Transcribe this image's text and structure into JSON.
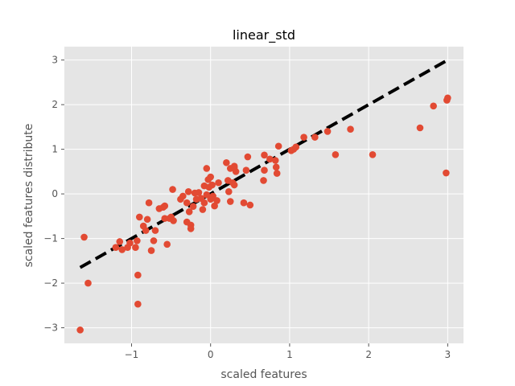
{
  "chart_data": {
    "type": "scatter",
    "title": "linear_std",
    "xlabel": "scaled features",
    "ylabel": "scaled features distribute",
    "xlim": [
      -1.85,
      3.2
    ],
    "ylim": [
      -3.35,
      3.3
    ],
    "xticks": [
      -1,
      0,
      1,
      2,
      3
    ],
    "yticks": [
      -3,
      -2,
      -1,
      0,
      1,
      2,
      3
    ],
    "tick_labels_x": [
      "−1",
      "0",
      "1",
      "2",
      "3"
    ],
    "tick_labels_y": [
      "−3",
      "−2",
      "−1",
      "0",
      "1",
      "2",
      "3"
    ],
    "grid": true,
    "background": "#e5e5e5",
    "point_color": "#e24a33",
    "line_color": "#000000",
    "reference_line": {
      "style": "dashed",
      "x": [
        -1.65,
        3.0
      ],
      "y": [
        -1.65,
        3.0
      ]
    },
    "points": [
      [
        -1.65,
        -3.05
      ],
      [
        -1.6,
        -0.97
      ],
      [
        -1.55,
        -2.0
      ],
      [
        -1.2,
        -1.2
      ],
      [
        -1.15,
        -1.07
      ],
      [
        -1.12,
        -1.25
      ],
      [
        -1.05,
        -1.2
      ],
      [
        -1.02,
        -1.1
      ],
      [
        -0.95,
        -1.2
      ],
      [
        -0.93,
        -1.05
      ],
      [
        -0.92,
        -1.82
      ],
      [
        -0.92,
        -2.47
      ],
      [
        -0.9,
        -0.52
      ],
      [
        -0.85,
        -0.72
      ],
      [
        -0.82,
        -0.82
      ],
      [
        -0.8,
        -0.57
      ],
      [
        -0.78,
        -0.2
      ],
      [
        -0.75,
        -1.27
      ],
      [
        -0.72,
        -1.05
      ],
      [
        -0.7,
        -0.82
      ],
      [
        -0.65,
        -0.33
      ],
      [
        -0.6,
        -0.3
      ],
      [
        -0.58,
        -0.27
      ],
      [
        -0.58,
        -0.55
      ],
      [
        -0.55,
        -1.13
      ],
      [
        -0.52,
        -0.55
      ],
      [
        -0.5,
        -0.52
      ],
      [
        -0.48,
        0.1
      ],
      [
        -0.47,
        -0.6
      ],
      [
        -0.38,
        -0.12
      ],
      [
        -0.35,
        -0.05
      ],
      [
        -0.3,
        -0.2
      ],
      [
        -0.3,
        -0.63
      ],
      [
        -0.28,
        0.05
      ],
      [
        -0.27,
        -0.4
      ],
      [
        -0.25,
        -0.7
      ],
      [
        -0.25,
        -0.78
      ],
      [
        -0.22,
        -0.28
      ],
      [
        -0.2,
        0.02
      ],
      [
        -0.18,
        -0.12
      ],
      [
        -0.15,
        0.03
      ],
      [
        -0.12,
        -0.1
      ],
      [
        -0.1,
        -0.35
      ],
      [
        -0.08,
        -0.2
      ],
      [
        -0.08,
        0.18
      ],
      [
        -0.05,
        0.57
      ],
      [
        -0.05,
        -0.02
      ],
      [
        -0.03,
        0.32
      ],
      [
        -0.02,
        0.15
      ],
      [
        0.0,
        0.38
      ],
      [
        0.0,
        -0.12
      ],
      [
        0.02,
        0.2
      ],
      [
        0.03,
        -0.05
      ],
      [
        0.05,
        -0.27
      ],
      [
        0.08,
        -0.15
      ],
      [
        0.1,
        0.25
      ],
      [
        0.2,
        0.7
      ],
      [
        0.22,
        0.3
      ],
      [
        0.23,
        0.05
      ],
      [
        0.25,
        0.57
      ],
      [
        0.25,
        -0.17
      ],
      [
        0.28,
        0.25
      ],
      [
        0.3,
        0.58
      ],
      [
        0.3,
        0.62
      ],
      [
        0.3,
        0.2
      ],
      [
        0.32,
        0.5
      ],
      [
        0.42,
        -0.2
      ],
      [
        0.45,
        0.53
      ],
      [
        0.47,
        0.83
      ],
      [
        0.5,
        -0.25
      ],
      [
        0.67,
        0.3
      ],
      [
        0.68,
        0.53
      ],
      [
        0.68,
        0.87
      ],
      [
        0.75,
        0.78
      ],
      [
        0.82,
        0.75
      ],
      [
        0.83,
        0.6
      ],
      [
        0.84,
        0.46
      ],
      [
        0.86,
        1.07
      ],
      [
        1.02,
        0.97
      ],
      [
        1.05,
        1.0
      ],
      [
        1.08,
        1.05
      ],
      [
        1.18,
        1.27
      ],
      [
        1.32,
        1.27
      ],
      [
        1.48,
        1.4
      ],
      [
        1.58,
        0.88
      ],
      [
        1.77,
        1.45
      ],
      [
        2.05,
        0.88
      ],
      [
        2.65,
        1.48
      ],
      [
        2.82,
        1.97
      ],
      [
        2.98,
        0.47
      ],
      [
        2.99,
        2.1
      ],
      [
        3.0,
        2.15
      ]
    ]
  }
}
